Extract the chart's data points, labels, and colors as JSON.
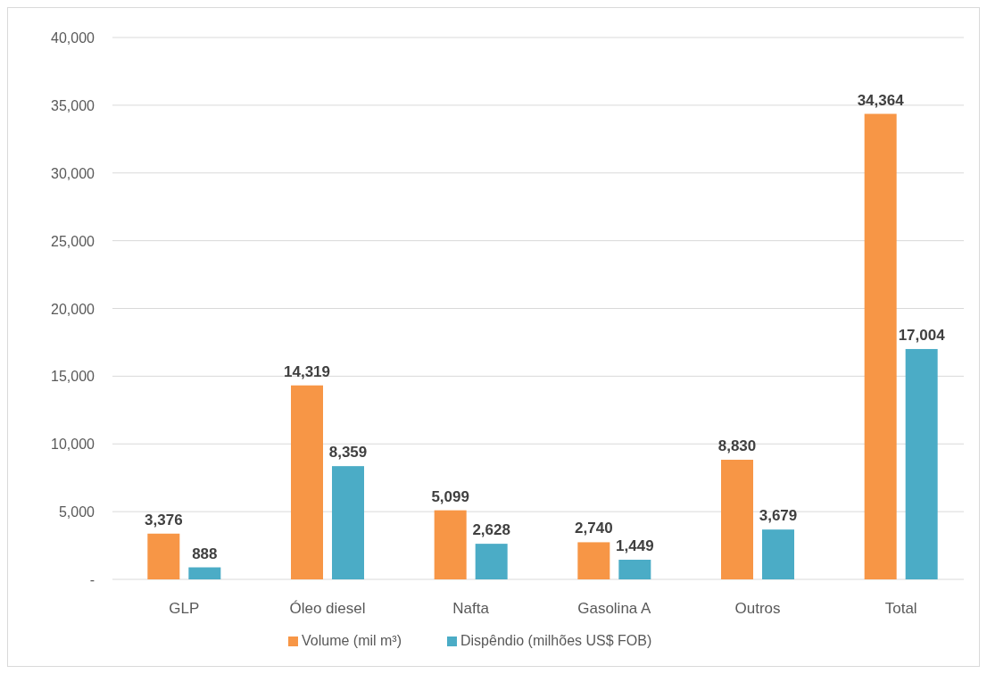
{
  "chart_data": {
    "type": "bar",
    "categories": [
      "GLP",
      "Óleo diesel",
      "Nafta",
      "Gasolina A",
      "Outros",
      "Total"
    ],
    "series": [
      {
        "name": "Volume (mil m³)",
        "color": "#f79646",
        "values": [
          3376,
          14319,
          5099,
          2740,
          8830,
          34364
        ],
        "value_labels": [
          "3,376",
          "14,319",
          "5,099",
          "2,740",
          "8,830",
          "34,364"
        ]
      },
      {
        "name": "Dispêndio (milhões US$ FOB)",
        "color": "#4bacc6",
        "values": [
          888,
          8359,
          2628,
          1449,
          3679,
          17004
        ],
        "value_labels": [
          "888",
          "8,359",
          "2,628",
          "1,449",
          "3,679",
          "17,004"
        ]
      }
    ],
    "ylim": [
      0,
      40000
    ],
    "yticks": [
      {
        "value": 0,
        "label": "-"
      },
      {
        "value": 5000,
        "label": "5,000"
      },
      {
        "value": 10000,
        "label": "10,000"
      },
      {
        "value": 15000,
        "label": "15,000"
      },
      {
        "value": 20000,
        "label": "20,000"
      },
      {
        "value": 25000,
        "label": "25,000"
      },
      {
        "value": 30000,
        "label": "30,000"
      },
      {
        "value": 35000,
        "label": "35,000"
      },
      {
        "value": 40000,
        "label": "40,000"
      }
    ],
    "grid": "y",
    "legend": "bottom"
  }
}
